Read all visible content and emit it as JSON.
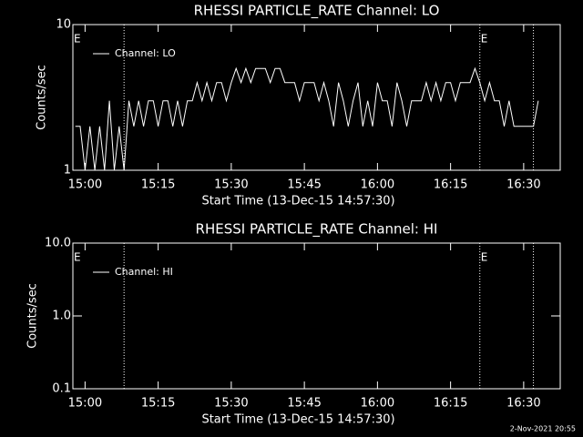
{
  "chart_data": [
    {
      "type": "line",
      "title": "RHESSI PARTICLE_RATE Channel: LO",
      "xlabel": "Start Time (13-Dec-15 14:57:30)",
      "ylabel": "Counts/sec",
      "log_y": true,
      "xlim": [
        "14:57:30",
        "16:37:30"
      ],
      "ylim": [
        1,
        10
      ],
      "yticks": [
        1,
        10
      ],
      "xticks": [
        "15:00",
        "15:15",
        "15:30",
        "15:45",
        "16:00",
        "16:15",
        "16:30"
      ],
      "vlines": [
        "15:08",
        "16:21",
        "16:32"
      ],
      "annotations": [
        {
          "text": "E",
          "x": "14:57:30"
        },
        {
          "text": "E",
          "x": "16:21"
        }
      ],
      "legend": "upper left",
      "x": [
        "14:58",
        "14:59",
        "15:00",
        "15:01",
        "15:02",
        "15:03",
        "15:04",
        "15:05",
        "15:06",
        "15:07",
        "15:08",
        "15:09",
        "15:10",
        "15:11",
        "15:12",
        "15:13",
        "15:14",
        "15:15",
        "15:16",
        "15:17",
        "15:18",
        "15:19",
        "15:20",
        "15:21",
        "15:22",
        "15:23",
        "15:24",
        "15:25",
        "15:26",
        "15:27",
        "15:28",
        "15:29",
        "15:30",
        "15:31",
        "15:32",
        "15:33",
        "15:34",
        "15:35",
        "15:36",
        "15:37",
        "15:38",
        "15:39",
        "15:40",
        "15:41",
        "15:42",
        "15:43",
        "15:44",
        "15:45",
        "15:46",
        "15:47",
        "15:48",
        "15:49",
        "15:50",
        "15:51",
        "15:52",
        "15:53",
        "15:54",
        "15:55",
        "15:56",
        "15:57",
        "15:58",
        "15:59",
        "16:00",
        "16:01",
        "16:02",
        "16:03",
        "16:04",
        "16:05",
        "16:06",
        "16:07",
        "16:08",
        "16:09",
        "16:10",
        "16:11",
        "16:12",
        "16:13",
        "16:14",
        "16:15",
        "16:16",
        "16:17",
        "16:18",
        "16:19",
        "16:20",
        "16:21",
        "16:22",
        "16:23",
        "16:24",
        "16:25",
        "16:26",
        "16:27",
        "16:28",
        "16:29",
        "16:30",
        "16:31",
        "16:32",
        "16:33"
      ],
      "series": [
        {
          "name": "Channel: LO",
          "color": "#ffffff",
          "values": [
            2,
            2,
            1,
            2,
            1,
            2,
            1,
            3,
            1,
            2,
            1,
            3,
            2,
            3,
            2,
            3,
            3,
            2,
            3,
            3,
            2,
            3,
            2,
            3,
            3,
            4,
            3,
            4,
            3,
            4,
            4,
            3,
            4,
            5,
            4,
            5,
            4,
            5,
            5,
            5,
            4,
            5,
            5,
            4,
            4,
            4,
            3,
            4,
            4,
            4,
            3,
            4,
            3,
            2,
            4,
            3,
            2,
            3,
            4,
            2,
            3,
            2,
            4,
            3,
            3,
            2,
            4,
            3,
            2,
            3,
            3,
            3,
            4,
            3,
            4,
            3,
            4,
            4,
            3,
            4,
            4,
            4,
            5,
            4,
            3,
            4,
            3,
            3,
            2,
            3,
            2,
            2,
            2,
            2,
            2,
            3
          ]
        }
      ]
    },
    {
      "type": "line",
      "title": "RHESSI PARTICLE_RATE Channel: HI",
      "xlabel": "Start Time (13-Dec-15 14:57:30)",
      "ylabel": "Counts/sec",
      "log_y": true,
      "xlim": [
        "14:57:30",
        "16:37:30"
      ],
      "ylim": [
        0.1,
        10
      ],
      "yticks": [
        0.1,
        {
          "value": 1,
          "label": "1.0"
        },
        {
          "value": 10,
          "label": "10.0"
        }
      ],
      "xticks": [
        "15:00",
        "15:15",
        "15:30",
        "15:45",
        "16:00",
        "16:15",
        "16:30"
      ],
      "vlines": [
        "15:08",
        "16:21",
        "16:32"
      ],
      "annotations": [
        {
          "text": "E",
          "x": "14:57:30"
        },
        {
          "text": "E",
          "x": "16:21"
        }
      ],
      "legend": "upper left",
      "x": [],
      "series": [
        {
          "name": "Channel: HI",
          "color": "#ffffff",
          "values": []
        }
      ]
    }
  ],
  "footer": "2-Nov-2021 20:55"
}
